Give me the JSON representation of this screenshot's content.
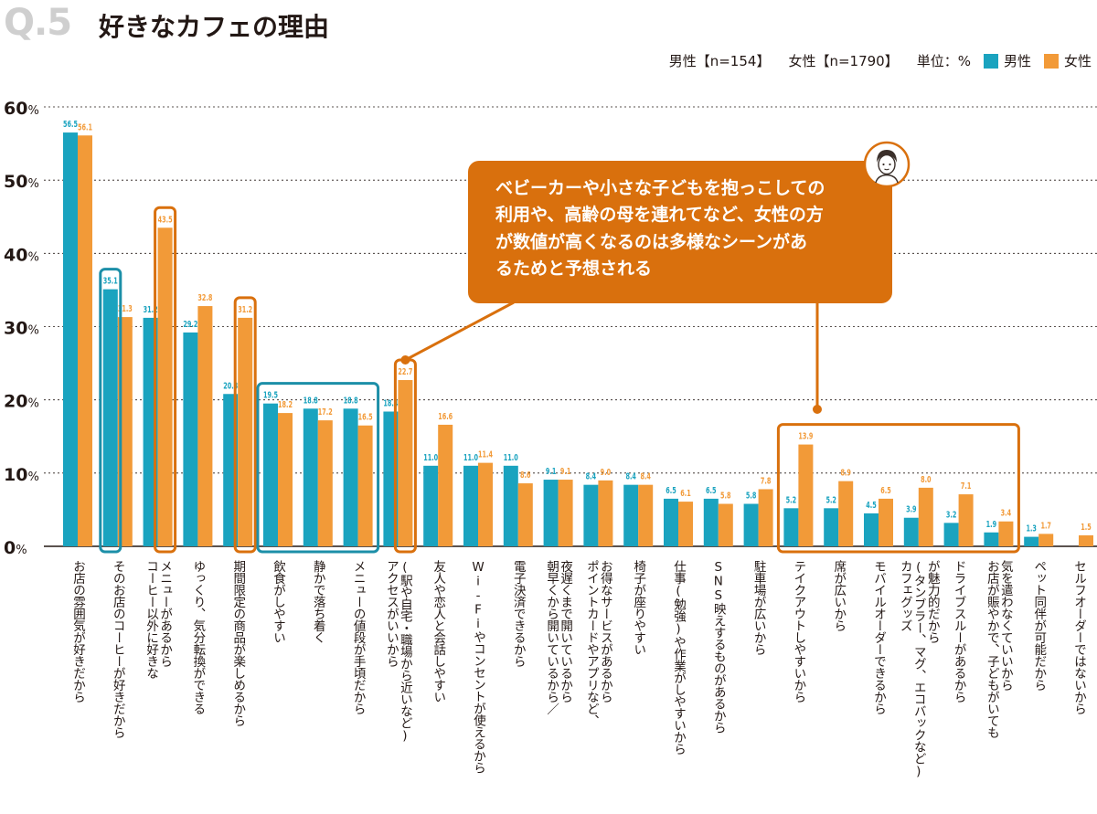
{
  "header": {
    "question_number": "Q.5",
    "title": "好きなカフェの理由",
    "male_sample": "男性【n=154】",
    "female_sample": "女性【n=1790】",
    "unit": "単位：%",
    "legend_male": "男性",
    "legend_female": "女性"
  },
  "colors": {
    "male": "#1aa3bf",
    "female": "#f29a38",
    "male_box": "#1c8fa8",
    "female_box": "#d9700d",
    "callout": "#d9700d"
  },
  "callout": {
    "lines": [
      "ベビーカーや小さな子どもを抱っこしての",
      "利用や、高齢の母を連れてなど、女性の方",
      "が数値が高くなるのは多様なシーンがあ",
      "るためと予想される"
    ],
    "icon": "person-avatar-icon"
  },
  "chart_data": {
    "type": "bar",
    "ylim": [
      0,
      60
    ],
    "yticks": [
      0,
      10,
      20,
      30,
      40,
      50,
      60
    ],
    "ytick_labels": [
      "0%",
      "10%",
      "20%",
      "30%",
      "40%",
      "50%",
      "60%"
    ],
    "categories": [
      [
        "お店の雰囲気が好きだから"
      ],
      [
        "そのお店のコーヒーが好きだから"
      ],
      [
        "コーヒー以外に好きな",
        "メニューがあるから"
      ],
      [
        "ゆっくり、気分転換ができる"
      ],
      [
        "期間限定の商品が楽しめるから"
      ],
      [
        "飲食がしやすい"
      ],
      [
        "静かで落ち着く"
      ],
      [
        "メニューの値段が手頃だから"
      ],
      [
        "アクセスがいいから",
        "(駅や自宅・職場から近いなど)"
      ],
      [
        "友人や恋人と会話しやすい"
      ],
      [
        "Wi-Fiやコンセントが使えるから"
      ],
      [
        "電子決済できるから"
      ],
      [
        "朝早くから開いているから／",
        "夜遅くまで開いているから"
      ],
      [
        "ポイントカードやアプリなど、",
        "お得なサービスがあるから"
      ],
      [
        "椅子が座りやすい"
      ],
      [
        "仕事(勉強)や作業がしやすいから"
      ],
      [
        "SNS映えするものがあるから"
      ],
      [
        "駐車場が広いから"
      ],
      [
        "テイクアウトしやすいから"
      ],
      [
        "席が広いから"
      ],
      [
        "モバイルオーダーできるから"
      ],
      [
        "カフェグッズ",
        "(タンブラー、マグ、エコバックなど)",
        "が魅力的だから"
      ],
      [
        "ドライブスルーがあるから"
      ],
      [
        "お店が賑やかで、子どもがいても",
        "気を遣わなくていいから"
      ],
      [
        "ペット同伴が可能だから"
      ],
      [
        "セルフオーダーではないから"
      ]
    ],
    "series": [
      {
        "name": "男性",
        "values": [
          56.5,
          35.1,
          31.2,
          29.2,
          20.8,
          19.5,
          18.8,
          18.8,
          18.4,
          11.0,
          11.0,
          11.0,
          9.1,
          8.4,
          8.4,
          6.5,
          6.5,
          5.8,
          5.2,
          5.2,
          4.5,
          3.9,
          3.2,
          1.9,
          1.3,
          null
        ],
        "labels": [
          "56.5",
          "35.1",
          "31.2",
          "29.2",
          "20.8",
          "19.5",
          "18.8",
          "18.8",
          "18.4",
          "11.0",
          "11.0",
          "11.0",
          "9.1",
          "8.4",
          "8.4",
          "6.5",
          "6.5",
          "5.8",
          "5.2",
          "5.2",
          "4.5",
          "3.9",
          "3.2",
          "1.9",
          "1.3",
          ""
        ]
      },
      {
        "name": "女性",
        "values": [
          56.1,
          31.3,
          43.5,
          32.8,
          31.2,
          18.2,
          17.2,
          16.5,
          22.7,
          16.6,
          11.4,
          8.6,
          9.1,
          9.0,
          8.4,
          6.1,
          5.8,
          7.8,
          13.9,
          8.9,
          6.5,
          8.0,
          7.1,
          3.4,
          1.7,
          1.5
        ],
        "labels": [
          "56.1",
          "31.3",
          "43.5",
          "32.8",
          "31.2",
          "18.2",
          "17.2",
          "16.5",
          "22.7",
          "16.6",
          "11.4",
          "8.6",
          "9.1",
          "9.0",
          "8.4",
          "6.1",
          "5.8",
          "7.8",
          "13.9",
          "8.9",
          "6.5",
          "8.0",
          "7.1",
          "3.4",
          "1.7",
          "1.5"
        ]
      }
    ],
    "highlights": [
      {
        "series": "男性",
        "categories": [
          1
        ]
      },
      {
        "series": "女性",
        "categories": [
          2
        ]
      },
      {
        "series": "女性",
        "categories": [
          4
        ]
      },
      {
        "series": "男性",
        "categories": [
          5,
          6,
          7
        ]
      },
      {
        "series": "女性",
        "categories": [
          8
        ]
      },
      {
        "series": "both",
        "categories": [
          18,
          19,
          20,
          21,
          22,
          23
        ]
      }
    ]
  }
}
